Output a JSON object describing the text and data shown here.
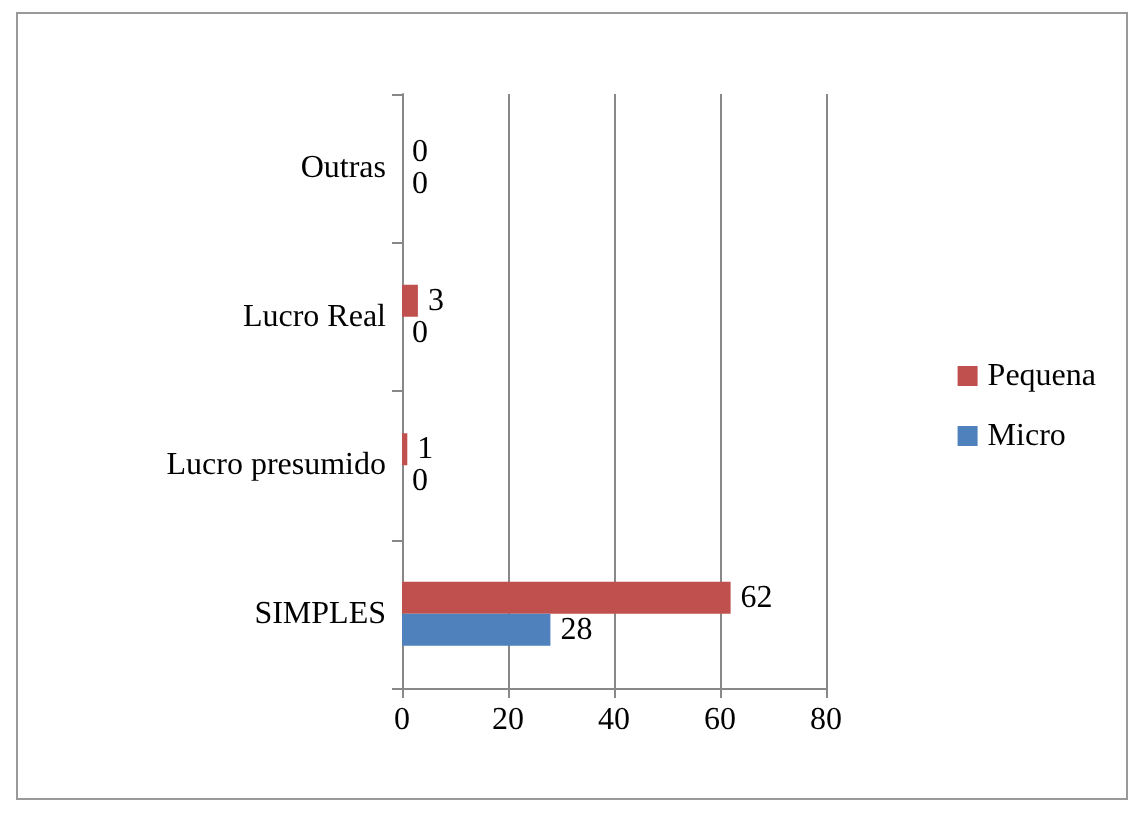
{
  "chart_data": {
    "type": "bar",
    "orientation": "horizontal",
    "categories": [
      "Outras",
      "Lucro Real",
      "Lucro presumido",
      "SIMPLES"
    ],
    "series": [
      {
        "name": "Pequena",
        "color": "#c0504d",
        "values": [
          0,
          3,
          1,
          62
        ]
      },
      {
        "name": "Micro",
        "color": "#4f81bd",
        "values": [
          0,
          0,
          0,
          28
        ]
      }
    ],
    "xlim": [
      0,
      80
    ],
    "xticks": [
      0,
      20,
      40,
      60,
      80
    ],
    "grid": "x",
    "legend": "right",
    "data_labels": true
  }
}
